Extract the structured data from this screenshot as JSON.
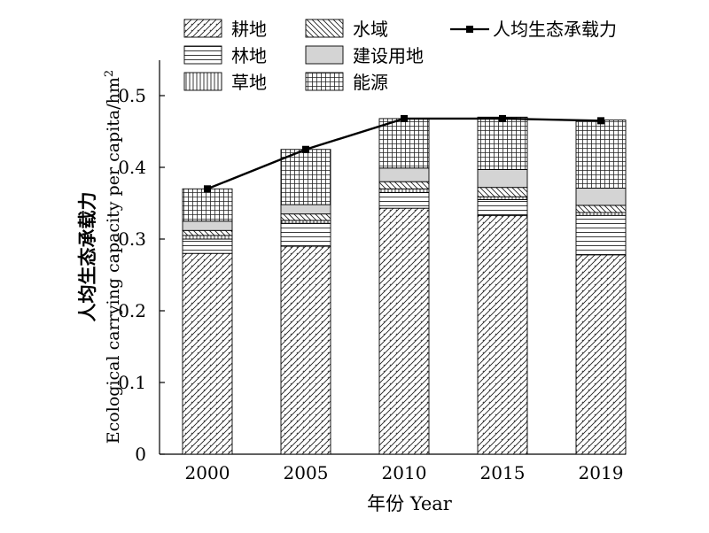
{
  "chart_data": {
    "type": "bar",
    "stacked": true,
    "categories": [
      "2000",
      "2005",
      "2010",
      "2015",
      "2019"
    ],
    "series": [
      {
        "name": "耕地",
        "values": [
          0.28,
          0.29,
          0.343,
          0.333,
          0.278
        ],
        "pattern": "diag-right"
      },
      {
        "name": "林地",
        "values": [
          0.02,
          0.032,
          0.022,
          0.022,
          0.055
        ],
        "pattern": "horizontal"
      },
      {
        "name": "草地",
        "values": [
          0.005,
          0.004,
          0.005,
          0.004,
          0.004
        ],
        "pattern": "vertical"
      },
      {
        "name": "水域",
        "values": [
          0.007,
          0.009,
          0.01,
          0.013,
          0.01
        ],
        "pattern": "diag-left"
      },
      {
        "name": "建设用地",
        "values": [
          0.013,
          0.013,
          0.019,
          0.025,
          0.024
        ],
        "pattern": "gray"
      },
      {
        "name": "能源",
        "values": [
          0.045,
          0.077,
          0.069,
          0.073,
          0.095
        ],
        "pattern": "grid"
      }
    ],
    "line": {
      "name": "人均生态承载力",
      "values": [
        0.37,
        0.425,
        0.468,
        0.468,
        0.465
      ]
    },
    "xlabel": "年份 Year",
    "ylabel_cn": "人均生态承载力",
    "ylabel_en": "Ecological carrying capacity per capita/hm",
    "ylabel_sup": "2",
    "ylim": [
      0,
      0.55
    ],
    "yticks": [
      "0",
      "0.1",
      "0.2",
      "0.3",
      "0.4",
      "0.5"
    ],
    "ytick_values": [
      0,
      0.1,
      0.2,
      0.3,
      0.4,
      0.5
    ],
    "grid": false,
    "legend": "top",
    "colors": {
      "bar_fill": "#ffffff",
      "stroke": "#000000",
      "gray_fill": "#d4d4d4",
      "line": "#000000"
    }
  }
}
